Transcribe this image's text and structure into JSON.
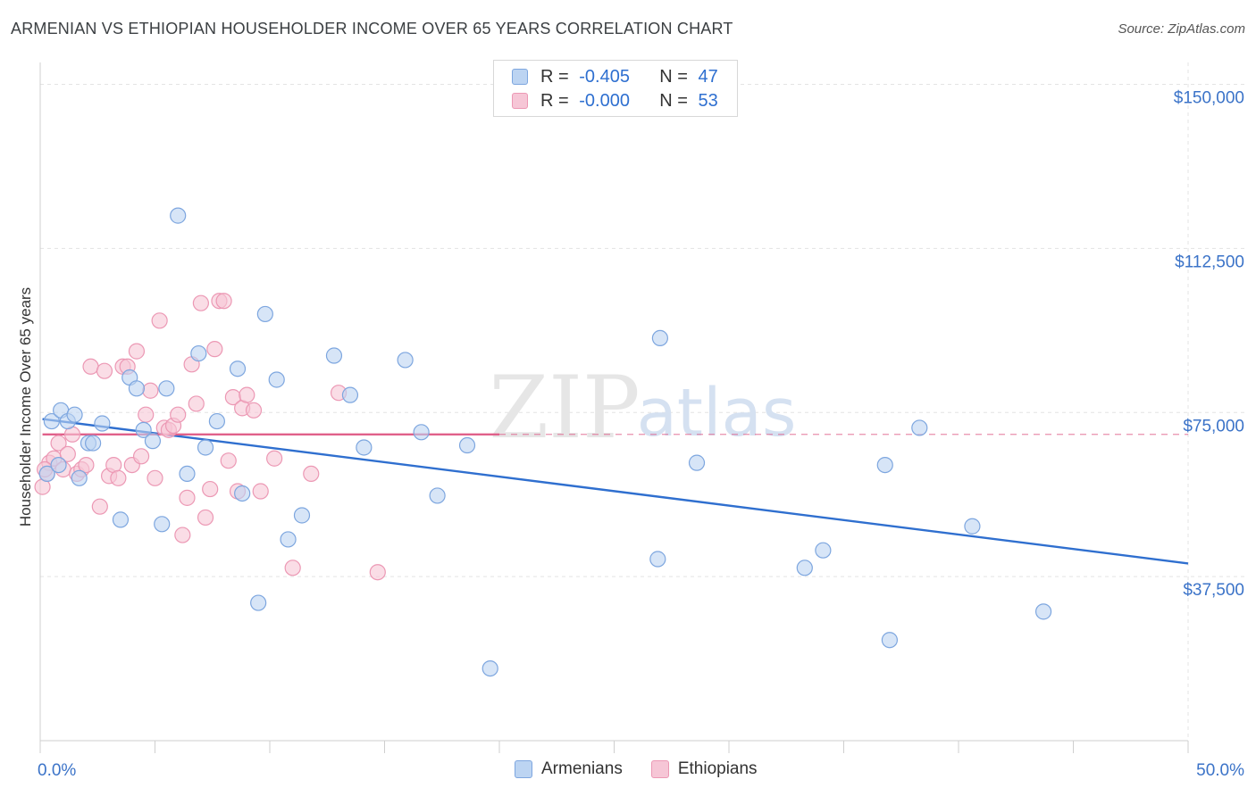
{
  "title": "ARMENIAN VS ETHIOPIAN HOUSEHOLDER INCOME OVER 65 YEARS CORRELATION CHART",
  "source": "Source: ZipAtlas.com",
  "watermark": {
    "zip": "ZIP",
    "atlas": "atlas"
  },
  "legend": {
    "rows": [
      {
        "r_label": "R = ",
        "r_value": "-0.405",
        "n_label": "N = ",
        "n_value": "47"
      },
      {
        "r_label": "R = ",
        "r_value": "-0.000",
        "n_label": "N = ",
        "n_value": "53"
      }
    ]
  },
  "colors": {
    "armenians_fill": "#bcd4f2",
    "armenians_stroke": "#7da6df",
    "armenians_line": "#2f6fcf",
    "ethiopians_fill": "#f6c6d6",
    "ethiopians_stroke": "#ec98b4",
    "ethiopians_line": "#e0608a",
    "axis_label": "#3b73c8",
    "grid": "#e3e3e3"
  },
  "chart_data": {
    "type": "scatter",
    "title": "ARMENIAN VS ETHIOPIAN HOUSEHOLDER INCOME OVER 65 YEARS CORRELATION CHART",
    "ylabel": "Householder Income Over 65 years",
    "xlabel": "",
    "xlim": [
      0,
      50
    ],
    "ylim": [
      0,
      155000
    ],
    "x_tick_labels": [
      "0.0%",
      "50.0%"
    ],
    "y_ticks": [
      {
        "value": 150000,
        "label": "$150,000"
      },
      {
        "value": 112500,
        "label": "$112,500"
      },
      {
        "value": 75000,
        "label": "$75,000"
      },
      {
        "value": 37500,
        "label": "$37,500"
      }
    ],
    "series": [
      {
        "name": "Armenians",
        "trend": {
          "x0": 0.1,
          "y0": 73500,
          "x1": 50,
          "y1": 40500,
          "solid_to": 50
        },
        "points": [
          [
            0.3,
            61000
          ],
          [
            0.5,
            73000
          ],
          [
            0.8,
            63000
          ],
          [
            0.9,
            75500
          ],
          [
            1.2,
            73000
          ],
          [
            1.5,
            74500
          ],
          [
            1.7,
            60000
          ],
          [
            2.1,
            68000
          ],
          [
            2.3,
            68000
          ],
          [
            2.7,
            72500
          ],
          [
            3.5,
            50500
          ],
          [
            3.9,
            83000
          ],
          [
            4.2,
            80500
          ],
          [
            4.5,
            71000
          ],
          [
            4.9,
            68500
          ],
          [
            5.3,
            49500
          ],
          [
            5.5,
            80500
          ],
          [
            6.0,
            120000
          ],
          [
            6.4,
            61000
          ],
          [
            6.9,
            88500
          ],
          [
            7.2,
            67000
          ],
          [
            7.7,
            73000
          ],
          [
            8.6,
            85000
          ],
          [
            8.8,
            56500
          ],
          [
            9.5,
            31500
          ],
          [
            9.8,
            97500
          ],
          [
            10.3,
            82500
          ],
          [
            10.8,
            46000
          ],
          [
            11.4,
            51500
          ],
          [
            12.8,
            88000
          ],
          [
            13.5,
            79000
          ],
          [
            14.1,
            67000
          ],
          [
            15.9,
            87000
          ],
          [
            16.6,
            70500
          ],
          [
            17.3,
            56000
          ],
          [
            18.6,
            67500
          ],
          [
            19.6,
            16500
          ],
          [
            26.9,
            41500
          ],
          [
            27.0,
            92000
          ],
          [
            28.6,
            63500
          ],
          [
            33.3,
            39500
          ],
          [
            34.1,
            43500
          ],
          [
            36.8,
            63000
          ],
          [
            37.0,
            23000
          ],
          [
            38.3,
            71500
          ],
          [
            40.6,
            49000
          ],
          [
            43.7,
            29500
          ]
        ]
      },
      {
        "name": "Ethiopians",
        "trend": {
          "x0": 0.1,
          "y0": 70000,
          "x1": 50,
          "y1": 70000,
          "solid_to": 20
        },
        "points": [
          [
            0.1,
            58000
          ],
          [
            0.3,
            61000
          ],
          [
            0.4,
            63500
          ],
          [
            0.6,
            64500
          ],
          [
            0.8,
            68000
          ],
          [
            1.0,
            62000
          ],
          [
            1.2,
            65500
          ],
          [
            1.4,
            70000
          ],
          [
            1.6,
            61000
          ],
          [
            1.8,
            62000
          ],
          [
            2.0,
            63000
          ],
          [
            2.2,
            85500
          ],
          [
            2.6,
            53500
          ],
          [
            2.8,
            84500
          ],
          [
            3.0,
            60500
          ],
          [
            3.2,
            63000
          ],
          [
            3.4,
            60000
          ],
          [
            3.6,
            85500
          ],
          [
            3.8,
            85500
          ],
          [
            4.0,
            63000
          ],
          [
            4.2,
            89000
          ],
          [
            4.4,
            65000
          ],
          [
            4.6,
            74500
          ],
          [
            4.8,
            80000
          ],
          [
            5.0,
            60000
          ],
          [
            5.2,
            96000
          ],
          [
            5.4,
            71500
          ],
          [
            5.6,
            71000
          ],
          [
            5.8,
            72000
          ],
          [
            6.0,
            74500
          ],
          [
            6.2,
            47000
          ],
          [
            6.4,
            55500
          ],
          [
            6.6,
            86000
          ],
          [
            6.8,
            77000
          ],
          [
            7.0,
            100000
          ],
          [
            7.2,
            51000
          ],
          [
            7.4,
            57500
          ],
          [
            7.6,
            89500
          ],
          [
            7.8,
            100500
          ],
          [
            8.0,
            100500
          ],
          [
            8.2,
            64000
          ],
          [
            8.4,
            78500
          ],
          [
            8.6,
            57000
          ],
          [
            8.8,
            76000
          ],
          [
            9.0,
            79000
          ],
          [
            9.3,
            75500
          ],
          [
            9.6,
            57000
          ],
          [
            10.2,
            64500
          ],
          [
            11.0,
            39500
          ],
          [
            11.8,
            61000
          ],
          [
            13.0,
            79500
          ],
          [
            14.7,
            38500
          ],
          [
            0.2,
            62000
          ]
        ]
      }
    ]
  }
}
